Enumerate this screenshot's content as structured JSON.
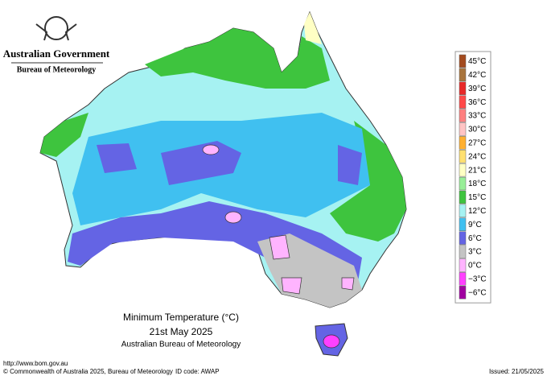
{
  "header": {
    "title": "Australian Government",
    "subtitle": "Bureau of Meteorology"
  },
  "map": {
    "title": "Minimum Temperature (°C)",
    "date": "21st May 2025",
    "source": "Australian Bureau of Meteorology"
  },
  "legend": {
    "items": [
      {
        "label": "45°C",
        "color": "#a34a1e"
      },
      {
        "label": "42°C",
        "color": "#a8743c"
      },
      {
        "label": "39°C",
        "color": "#e82828"
      },
      {
        "label": "36°C",
        "color": "#ff4848"
      },
      {
        "label": "33°C",
        "color": "#ff8080"
      },
      {
        "label": "30°C",
        "color": "#ffc4c4"
      },
      {
        "label": "27°C",
        "color": "#ffb030"
      },
      {
        "label": "24°C",
        "color": "#ffe070"
      },
      {
        "label": "21°C",
        "color": "#ffffc4"
      },
      {
        "label": "18°C",
        "color": "#98ee98"
      },
      {
        "label": "15°C",
        "color": "#3ec43e"
      },
      {
        "label": "12°C",
        "color": "#a6f2f2"
      },
      {
        "label": "9°C",
        "color": "#40c0f0"
      },
      {
        "label": "6°C",
        "color": "#6464e4"
      },
      {
        "label": "3°C",
        "color": "#c4c4c4"
      },
      {
        "label": "0°C",
        "color": "#ffb4ff"
      },
      {
        "label": "−3°C",
        "color": "#ff40ff"
      },
      {
        "label": "−6°C",
        "color": "#a000a0"
      }
    ]
  },
  "footer": {
    "url": "http://www.bom.gov.au",
    "copyright": "© Commonwealth of Australia 2025, Bureau of Meteorology",
    "id_code": "ID code: AWAP",
    "issued": "Issued: 21/05/2025"
  }
}
